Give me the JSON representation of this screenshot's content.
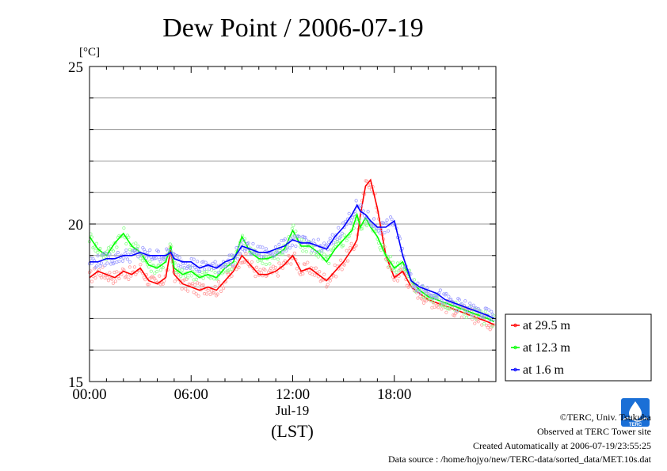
{
  "title": "Dew Point / 2006-07-19",
  "chart_data": {
    "type": "line",
    "title": "Dew Point / 2006-07-19",
    "unit_label": "[°C]",
    "xlabel_date": "Jul-19",
    "xlabel_tz": "(LST)",
    "xlim": [
      0,
      24
    ],
    "ylim": [
      15,
      25
    ],
    "yticks": [
      15,
      20,
      25
    ],
    "xticks": [
      0,
      6,
      12,
      18
    ],
    "xtick_labels": [
      "00:00",
      "06:00",
      "12:00",
      "18:00"
    ],
    "grid": true,
    "legend_position": "right",
    "series": [
      {
        "name": "at 29.5 m",
        "color": "#ff0000",
        "x": [
          0,
          0.5,
          1,
          1.5,
          2,
          2.5,
          3,
          3.5,
          4,
          4.5,
          4.8,
          5,
          5.5,
          6,
          6.5,
          7,
          7.5,
          8,
          8.5,
          9,
          9.5,
          10,
          10.5,
          11,
          11.5,
          12,
          12.5,
          13,
          13.5,
          14,
          14.5,
          15,
          15.5,
          15.8,
          16,
          16.3,
          16.6,
          17,
          17.5,
          18,
          18.5,
          19,
          19.5,
          20,
          20.5,
          21,
          21.5,
          22,
          22.5,
          23,
          23.5,
          23.9
        ],
        "y": [
          18.3,
          18.5,
          18.4,
          18.3,
          18.5,
          18.4,
          18.6,
          18.2,
          18.1,
          18.3,
          19.2,
          18.4,
          18.1,
          18.0,
          17.9,
          18.0,
          17.9,
          18.2,
          18.5,
          19.0,
          18.7,
          18.4,
          18.4,
          18.5,
          18.7,
          19.0,
          18.5,
          18.6,
          18.4,
          18.2,
          18.5,
          18.8,
          19.2,
          19.5,
          20.3,
          21.2,
          21.4,
          20.5,
          19.0,
          18.3,
          18.5,
          18.0,
          17.8,
          17.6,
          17.5,
          17.4,
          17.3,
          17.2,
          17.1,
          17.0,
          16.9,
          16.8
        ]
      },
      {
        "name": "at 12.3 m",
        "color": "#00ff00",
        "x": [
          0,
          0.5,
          1,
          1.5,
          2,
          2.5,
          3,
          3.5,
          4,
          4.5,
          4.8,
          5,
          5.5,
          6,
          6.5,
          7,
          7.5,
          8,
          8.5,
          9,
          9.5,
          10,
          10.5,
          11,
          11.5,
          12,
          12.5,
          13,
          13.5,
          14,
          14.5,
          15,
          15.5,
          15.8,
          16,
          16.3,
          16.6,
          17,
          17.5,
          18,
          18.5,
          19,
          19.5,
          20,
          20.5,
          21,
          21.5,
          22,
          22.5,
          23,
          23.5,
          23.9
        ],
        "y": [
          19.6,
          19.2,
          19.0,
          19.4,
          19.7,
          19.3,
          19.1,
          18.7,
          18.6,
          18.8,
          19.3,
          18.6,
          18.4,
          18.5,
          18.3,
          18.4,
          18.3,
          18.6,
          18.8,
          19.6,
          19.1,
          18.9,
          18.9,
          19.0,
          19.2,
          19.8,
          19.3,
          19.3,
          19.1,
          18.8,
          19.2,
          19.5,
          19.8,
          20.3,
          19.9,
          20.2,
          19.9,
          19.6,
          19.0,
          18.6,
          18.8,
          18.2,
          17.9,
          17.7,
          17.6,
          17.5,
          17.4,
          17.3,
          17.2,
          17.1,
          17.0,
          16.9
        ]
      },
      {
        "name": "at 1.6 m",
        "color": "#0000ff",
        "x": [
          0,
          0.5,
          1,
          1.5,
          2,
          2.5,
          3,
          3.5,
          4,
          4.5,
          4.8,
          5,
          5.5,
          6,
          6.5,
          7,
          7.5,
          8,
          8.5,
          9,
          9.5,
          10,
          10.5,
          11,
          11.5,
          12,
          12.5,
          13,
          13.5,
          14,
          14.5,
          15,
          15.5,
          15.8,
          16,
          16.3,
          16.6,
          17,
          17.5,
          18,
          18.5,
          19,
          19.5,
          20,
          20.5,
          21,
          21.5,
          22,
          22.5,
          23,
          23.5,
          23.9
        ],
        "y": [
          18.8,
          18.8,
          18.9,
          18.9,
          19.0,
          19.0,
          19.1,
          19.0,
          19.0,
          19.0,
          19.1,
          18.9,
          18.8,
          18.8,
          18.6,
          18.7,
          18.6,
          18.8,
          18.9,
          19.3,
          19.2,
          19.1,
          19.1,
          19.2,
          19.3,
          19.5,
          19.4,
          19.4,
          19.3,
          19.2,
          19.6,
          19.9,
          20.3,
          20.6,
          20.4,
          20.3,
          20.1,
          19.9,
          19.9,
          20.1,
          19.0,
          18.2,
          18.0,
          17.9,
          17.8,
          17.6,
          17.5,
          17.4,
          17.3,
          17.2,
          17.1,
          17.0
        ]
      }
    ]
  },
  "footer": {
    "copyright": "©TERC, Univ. Tsukuba",
    "site": "Observed at TERC Tower site",
    "created": "Created Automatically at 2006-07-19/23:55:25",
    "source": "Data source : /home/hojyo/new/TERC-data/sorted_data/MET.10s.dat"
  },
  "logo": {
    "text": "TERC",
    "color": "#1a6fd6"
  }
}
